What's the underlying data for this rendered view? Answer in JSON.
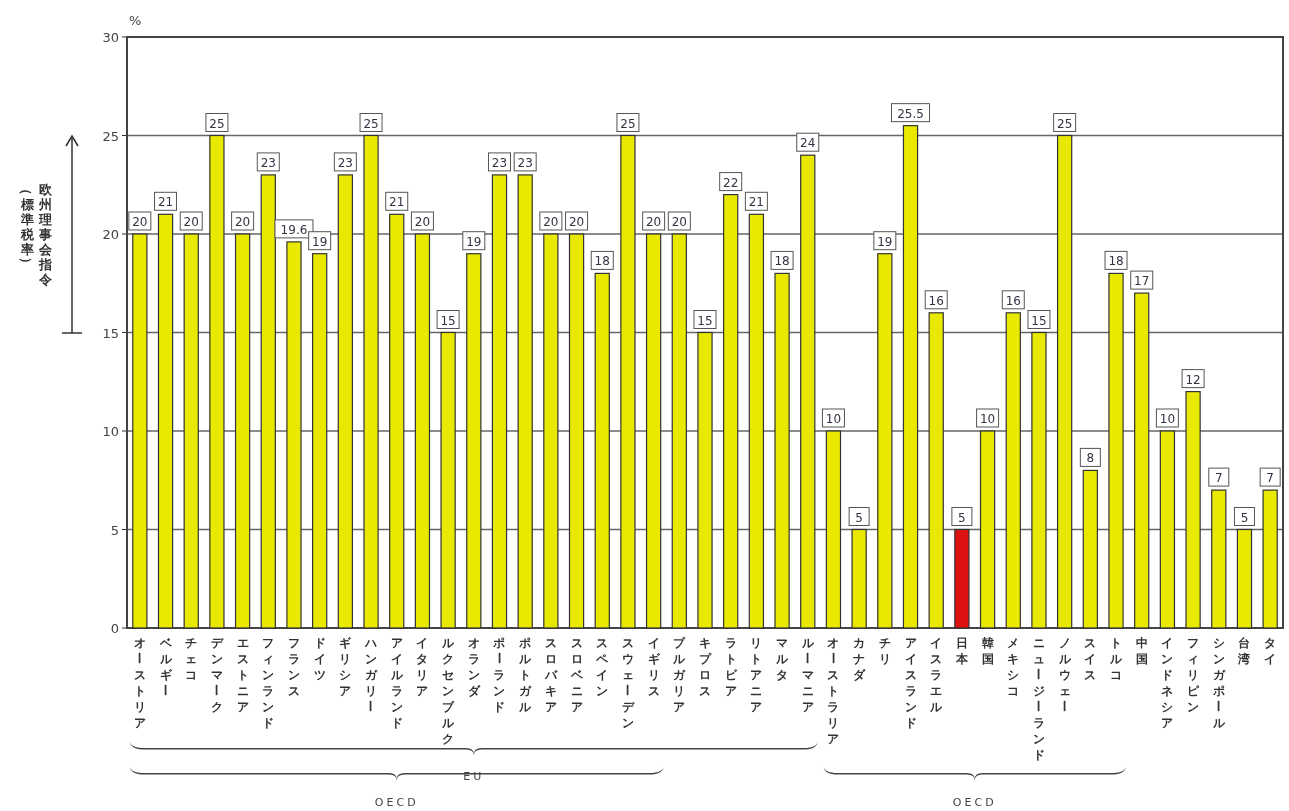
{
  "chart_data": {
    "type": "bar",
    "ylabel": "%",
    "categories": [
      "オーストリア",
      "ベルギー",
      "チェコ",
      "デンマーク",
      "エストニア",
      "フィンランド",
      "フランス",
      "ドイツ",
      "ギリシア",
      "ハンガリー",
      "アイルランド",
      "イタリア",
      "ルクセンブルク",
      "オランダ",
      "ポーランド",
      "ポルトガル",
      "スロバキア",
      "スロベニア",
      "スペイン",
      "スウェーデン",
      "イギリス",
      "ブルガリア",
      "キプロス",
      "ラトビア",
      "リトアニア",
      "マルタ",
      "ルーマニア",
      "オーストラリア",
      "カナダ",
      "チリ",
      "アイスランド",
      "イスラエル",
      "日本",
      "韓国",
      "メキシコ",
      "ニュージーランド",
      "ノルウェー",
      "スイス",
      "トルコ",
      "中国",
      "インドネシア",
      "フィリピン",
      "シンガポール",
      "台湾",
      "タイ"
    ],
    "values": [
      20,
      21,
      20,
      25,
      20,
      23,
      19.6,
      19,
      23,
      25,
      21,
      20,
      15,
      19,
      23,
      23,
      20,
      20,
      18,
      25,
      20,
      20,
      15,
      22,
      21,
      18,
      24,
      10,
      5,
      19,
      25.5,
      16,
      5,
      10,
      16,
      15,
      25,
      8,
      18,
      17,
      10,
      12,
      7,
      5,
      7
    ],
    "colors": [
      "#e8e800",
      "#e8e800",
      "#e8e800",
      "#e8e800",
      "#e8e800",
      "#e8e800",
      "#e8e800",
      "#e8e800",
      "#e8e800",
      "#e8e800",
      "#e8e800",
      "#e8e800",
      "#e8e800",
      "#e8e800",
      "#e8e800",
      "#e8e800",
      "#e8e800",
      "#e8e800",
      "#e8e800",
      "#e8e800",
      "#e8e800",
      "#e8e800",
      "#e8e800",
      "#e8e800",
      "#e8e800",
      "#e8e800",
      "#e8e800",
      "#e8e800",
      "#e8e800",
      "#e8e800",
      "#e8e800",
      "#e8e800",
      "#dd1111",
      "#e8e800",
      "#e8e800",
      "#e8e800",
      "#e8e800",
      "#e8e800",
      "#e8e800",
      "#e8e800",
      "#e8e800",
      "#e8e800",
      "#e8e800",
      "#e8e800",
      "#e8e800"
    ],
    "ylim": [
      0,
      30
    ],
    "yticks": [
      0,
      5,
      10,
      15,
      20,
      25,
      30
    ],
    "grid": "y",
    "data_labels": true,
    "legend": false,
    "annotations": [
      "欧州理事会指令（標準税率）",
      "EU",
      "OECD",
      "OECD"
    ]
  }
}
